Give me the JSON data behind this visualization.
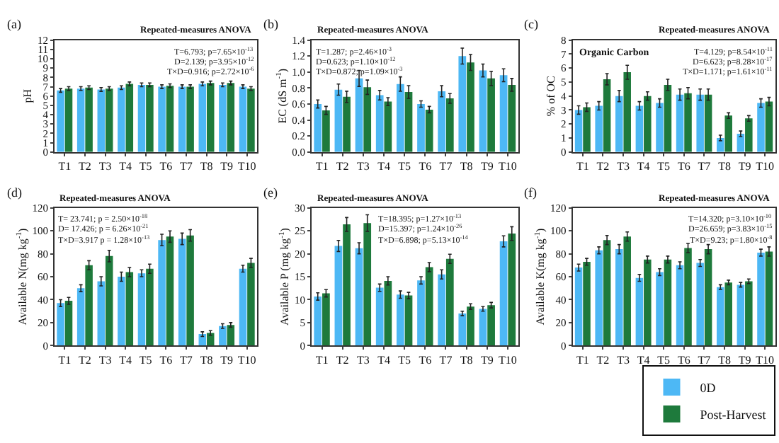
{
  "chart_data": [
    {
      "type": "bar",
      "title": "(a)",
      "ylabel": "pH",
      "categories": [
        "T1",
        "T2",
        "T3",
        "T4",
        "T5",
        "T6",
        "T7",
        "T8",
        "T9",
        "T10"
      ],
      "ylim": [
        0,
        12
      ],
      "yticks": [
        0,
        1,
        2,
        3,
        4,
        5,
        6,
        7,
        8,
        9,
        10,
        11,
        12
      ],
      "legend": false,
      "annotations": [
        "Repeated-measures ANOVA",
        "T=6.793; p=7.65×10$^{-13}$",
        "D=2.139; p=3.95×10$^{-12}$",
        "T×D=0.916; p=2.72×10$^{-6}$"
      ],
      "series": [
        {
          "color": "#4db8f5",
          "values": [
            6.6,
            6.8,
            6.7,
            6.9,
            7.2,
            7.0,
            7.0,
            7.3,
            7.2,
            7.0
          ],
          "errors": [
            0.2,
            0.2,
            0.2,
            0.2,
            0.2,
            0.2,
            0.2,
            0.2,
            0.2,
            0.2
          ]
        },
        {
          "color": "#1e7a3c",
          "values": [
            6.8,
            6.9,
            6.8,
            7.3,
            7.2,
            7.1,
            7.0,
            7.4,
            7.4,
            6.8
          ],
          "errors": [
            0.2,
            0.2,
            0.2,
            0.2,
            0.2,
            0.2,
            0.2,
            0.2,
            0.2,
            0.2
          ]
        }
      ]
    },
    {
      "type": "bar",
      "title": "(b)",
      "ylabel": "EC (dS m$^{-1}$)",
      "categories": [
        "T1",
        "T2",
        "T3",
        "T4",
        "T5",
        "T6",
        "T7",
        "T8",
        "T9",
        "T10"
      ],
      "ylim": [
        0,
        1.4
      ],
      "yticks": [
        {
          "value": 0,
          "label": "0.0"
        },
        0.2,
        0.4,
        0.6,
        0.8,
        {
          "value": 1,
          "label": "1.0"
        },
        1.2,
        1.4
      ],
      "legend": false,
      "annotations": [
        "Repeated-measures ANOVA",
        "T=1.287; p=2.46×10$^{-3}$",
        "D=0.623; p=1.10×10$^{-12}$",
        "T×D=0.872; p=1.09×10$^{-3}$"
      ],
      "series": [
        {
          "color": "#4db8f5",
          "values": [
            0.6,
            0.78,
            0.92,
            0.71,
            0.85,
            0.6,
            0.76,
            1.2,
            1.02,
            0.96
          ],
          "errors": [
            0.05,
            0.07,
            0.1,
            0.06,
            0.09,
            0.04,
            0.07,
            0.1,
            0.08,
            0.08
          ]
        },
        {
          "color": "#1e7a3c",
          "values": [
            0.52,
            0.69,
            0.81,
            0.63,
            0.75,
            0.53,
            0.67,
            1.12,
            0.92,
            0.84
          ],
          "errors": [
            0.05,
            0.07,
            0.09,
            0.05,
            0.08,
            0.04,
            0.06,
            0.1,
            0.09,
            0.08
          ]
        }
      ]
    },
    {
      "type": "bar",
      "title": "(c)",
      "ylabel": "% of OC",
      "categories": [
        "T1",
        "T2",
        "T3",
        "T4",
        "T5",
        "T6",
        "T7",
        "T8",
        "T9",
        "T10"
      ],
      "ylim": [
        0,
        8
      ],
      "yticks": [
        0,
        1,
        2,
        3,
        4,
        5,
        6,
        7,
        8
      ],
      "legend": false,
      "annotations": [
        "Organic Carbon",
        "Repeated-measures ANOVA",
        "T=4.129; p=8.54×10$^{-11}$",
        "D=6.623; p=8.28×10$^{-17}$",
        "T×D=1.171; p=1.61×10$^{-11}$"
      ],
      "series": [
        {
          "color": "#4db8f5",
          "values": [
            3.0,
            3.3,
            4.0,
            3.3,
            3.5,
            4.1,
            4.1,
            1.0,
            1.3,
            3.5
          ],
          "errors": [
            0.3,
            0.3,
            0.4,
            0.3,
            0.3,
            0.4,
            0.4,
            0.2,
            0.2,
            0.3
          ]
        },
        {
          "color": "#1e7a3c",
          "values": [
            3.2,
            5.2,
            5.7,
            4.0,
            4.8,
            4.2,
            4.1,
            2.6,
            2.4,
            3.6
          ],
          "errors": [
            0.3,
            0.4,
            0.5,
            0.3,
            0.4,
            0.4,
            0.4,
            0.2,
            0.2,
            0.3
          ]
        }
      ]
    },
    {
      "type": "bar",
      "title": "(d)",
      "ylabel": "Available N(mg kg$^{-1}$)",
      "categories": [
        "T1",
        "T2",
        "T3",
        "T4",
        "T5",
        "T6",
        "T7",
        "T8",
        "T9",
        "T10"
      ],
      "ylim": [
        0,
        120
      ],
      "yticks": [
        0,
        20,
        40,
        60,
        80,
        100,
        120
      ],
      "legend": false,
      "annotations": [
        "Repeated-measures ANOVA",
        "T= 23.741; p = 2.50×10$^{-18}$",
        "D= 17.426; p = 6.26×10$^{-21}$",
        "T×D=3.917 p = 1.28×10$^{-13}$"
      ],
      "series": [
        {
          "color": "#4db8f5",
          "values": [
            37,
            50,
            56,
            60,
            63,
            92,
            93,
            10,
            17,
            67
          ],
          "errors": [
            3,
            3,
            4,
            4,
            3,
            5,
            5,
            2,
            2,
            3
          ]
        },
        {
          "color": "#1e7a3c",
          "values": [
            39,
            70,
            78,
            64,
            67,
            95,
            96,
            11,
            18,
            72
          ],
          "errors": [
            3,
            4,
            5,
            4,
            4,
            5,
            5,
            2,
            2,
            4
          ]
        }
      ]
    },
    {
      "type": "bar",
      "title": "(e)",
      "ylabel": "Available P (mg kg$^{-1}$)",
      "categories": [
        "T1",
        "T2",
        "T3",
        "T4",
        "T5",
        "T6",
        "T7",
        "T8",
        "T9",
        "T10"
      ],
      "ylim": [
        0,
        30
      ],
      "yticks": [
        0,
        5,
        10,
        15,
        20,
        25,
        30
      ],
      "legend": false,
      "annotations": [
        "Repeated-measures ANOVA",
        "T=18.395; p=1.27×10$^{-13}$",
        "D=15.397; p=1.24×10$^{-26}$",
        "T×D=6.898; p=5.13×10$^{-14}$"
      ],
      "series": [
        {
          "color": "#4db8f5",
          "values": [
            10.7,
            21.7,
            21.2,
            12.6,
            11.1,
            14.2,
            15.5,
            7.0,
            8.0,
            22.7
          ],
          "errors": [
            0.8,
            1.2,
            1.2,
            0.8,
            0.8,
            0.8,
            1.0,
            0.5,
            0.5,
            1.2
          ]
        },
        {
          "color": "#1e7a3c",
          "values": [
            11.4,
            26.4,
            26.7,
            14.1,
            10.9,
            17.1,
            18.9,
            8.5,
            8.8,
            24.4
          ],
          "errors": [
            0.8,
            1.5,
            1.8,
            0.9,
            0.7,
            1.0,
            1.0,
            0.6,
            0.6,
            1.5
          ]
        }
      ]
    },
    {
      "type": "bar",
      "title": "(f)",
      "ylabel": "Available K(mg kg$^{-1}$)",
      "categories": [
        "T1",
        "T2",
        "T3",
        "T4",
        "T5",
        "T6",
        "T7",
        "T8",
        "T9",
        "T10"
      ],
      "ylim": [
        0,
        120
      ],
      "yticks": [
        0,
        20,
        40,
        60,
        80,
        100,
        120
      ],
      "legend": "bottom right",
      "annotations": [
        "Repeated-measures ANOVA",
        "T=14.320; p=3.10×10$^{-10}$",
        "D=26.659; p=3.83×10$^{-15}$",
        "T×D=9.23; p=1.80×10$^{-8}$"
      ],
      "series": [
        {
          "name": "0D",
          "color": "#4db8f5",
          "values": [
            68,
            83,
            84,
            59,
            64,
            70,
            72,
            51,
            53,
            81
          ],
          "errors": [
            3,
            3,
            4,
            3,
            3,
            3,
            3,
            2,
            2,
            3
          ]
        },
        {
          "name": "Post-Harvest",
          "color": "#1e7a3c",
          "values": [
            73,
            92,
            95,
            75,
            75,
            85,
            84,
            55,
            56,
            82
          ],
          "errors": [
            3,
            4,
            4,
            3,
            3,
            4,
            4,
            2,
            2,
            4
          ]
        }
      ]
    }
  ]
}
